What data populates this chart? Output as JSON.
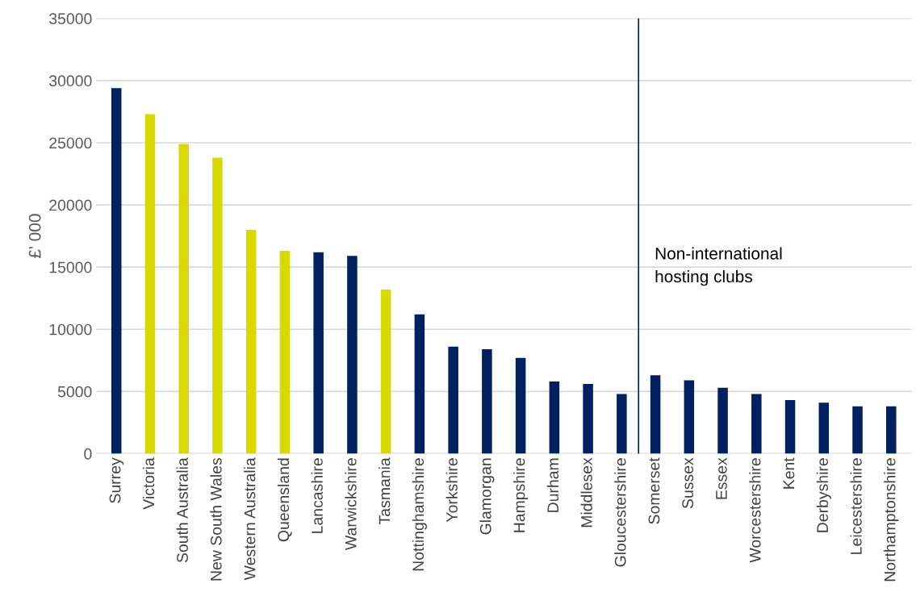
{
  "chart_data": {
    "type": "bar",
    "ylabel": "£' 000",
    "categories": [
      "Surrey",
      "Victoria",
      "South Australia",
      "New South Wales",
      "Western Australia",
      "Queensland",
      "Lancashire",
      "Warwickshire",
      "Tasmania",
      "Nottinghamshire",
      "Yorkshire",
      "Glamorgan",
      "Hampshire",
      "Durham",
      "Middlesex",
      "Gloucestershire",
      "Somerset",
      "Sussex",
      "Essex",
      "Worcestershire",
      "Kent",
      "Derbyshire",
      "Leicestershire",
      "Northamptonshire"
    ],
    "values": [
      29400,
      27300,
      24900,
      23800,
      18000,
      16300,
      16200,
      15900,
      13200,
      11200,
      8600,
      8400,
      7700,
      5800,
      5600,
      4800,
      6300,
      5900,
      5300,
      4800,
      4300,
      4100,
      3800,
      3800
    ],
    "colors": [
      "#002060",
      "#d9d900",
      "#d9d900",
      "#d9d900",
      "#d9d900",
      "#d9d900",
      "#002060",
      "#002060",
      "#d9d900",
      "#002060",
      "#002060",
      "#002060",
      "#002060",
      "#002060",
      "#002060",
      "#002060",
      "#002060",
      "#002060",
      "#002060",
      "#002060",
      "#002060",
      "#002060",
      "#002060",
      "#002060"
    ],
    "ylim": [
      0,
      35000
    ],
    "yticks": [
      0,
      5000,
      10000,
      15000,
      20000,
      25000,
      30000,
      35000
    ],
    "grid": "y",
    "annotations": [
      "Non-international\nhosting clubs"
    ],
    "ref_lines": [
      {
        "axis": "x",
        "value": "Somerset",
        "color": "#002060"
      }
    ]
  }
}
